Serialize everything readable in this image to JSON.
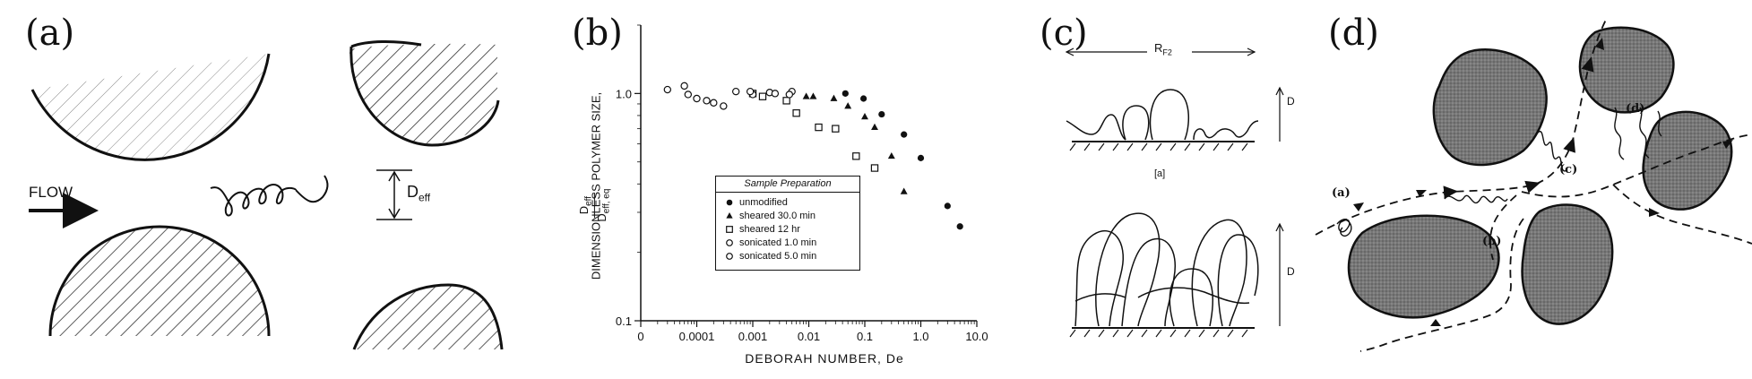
{
  "panels": {
    "a": {
      "label": "(a)",
      "flow_label": "FLOW",
      "deff_main": "D",
      "deff_sub": "eff"
    },
    "b": {
      "label": "(b)",
      "ylabel_line1": "DIMENSIONLESS POLYMER SIZE,",
      "ylabel_num_main": "D",
      "ylabel_num_sub": "eff",
      "ylabel_den_main": "D",
      "ylabel_den_sub": "eff, eq",
      "xlabel": "DEBORAH NUMBER, De",
      "legend_title": "Sample Preparation",
      "legend_items": [
        "unmodified",
        "sheared 30.0 min",
        "sheared 12 hr",
        "sonicated 1.0 min",
        "sonicated 5.0 min"
      ]
    },
    "c": {
      "label": "(c)",
      "rf2_main": "R",
      "rf2_sub": "F2",
      "d_top": "D",
      "sub_label": "[a]",
      "d_bottom": "D"
    },
    "d": {
      "label": "(d)",
      "site_a": "(a)",
      "site_b": "(b)",
      "site_c": "(c)",
      "site_d": "(d)"
    }
  },
  "chart_data": {
    "type": "scatter",
    "xscale": "log",
    "yscale": "log",
    "x_ticks": [
      "0",
      "0.0001",
      "0.001",
      "0.01",
      "0.1",
      "1.0",
      "10.0"
    ],
    "y_ticks": [
      "0.1",
      "1.0"
    ],
    "xlim": [
      1e-05,
      10
    ],
    "ylim": [
      0.1,
      2
    ],
    "legend_position": "center-left",
    "series": [
      {
        "name": "unmodified",
        "marker": "filled-circle",
        "points": [
          [
            0.045,
            1.0
          ],
          [
            0.095,
            0.95
          ],
          [
            0.2,
            0.81
          ],
          [
            0.5,
            0.66
          ],
          [
            1.0,
            0.52
          ],
          [
            3.0,
            0.32
          ],
          [
            5.0,
            0.26
          ]
        ]
      },
      {
        "name": "sheared 30.0 min",
        "marker": "filled-triangle",
        "points": [
          [
            0.009,
            0.97
          ],
          [
            0.012,
            0.97
          ],
          [
            0.028,
            0.95
          ],
          [
            0.05,
            0.88
          ],
          [
            0.1,
            0.79
          ],
          [
            0.15,
            0.71
          ],
          [
            0.3,
            0.53
          ],
          [
            0.5,
            0.37
          ]
        ]
      },
      {
        "name": "sheared 12 hr",
        "marker": "open-square",
        "points": [
          [
            0.001,
            1.0
          ],
          [
            0.0015,
            0.97
          ],
          [
            0.004,
            0.93
          ],
          [
            0.006,
            0.82
          ],
          [
            0.015,
            0.71
          ],
          [
            0.03,
            0.7
          ],
          [
            0.07,
            0.53
          ],
          [
            0.15,
            0.47
          ]
        ]
      },
      {
        "name": "sonicated 1.0 min",
        "marker": "open-circle",
        "points": [
          [
            3e-05,
            1.04
          ],
          [
            7e-05,
            0.99
          ],
          [
            0.0001,
            0.95
          ],
          [
            0.0002,
            0.91
          ],
          [
            0.0005,
            1.02
          ],
          [
            0.001,
            0.99
          ],
          [
            0.002,
            1.01
          ],
          [
            0.005,
            1.02
          ]
        ]
      },
      {
        "name": "sonicated 5.0 min",
        "marker": "open-circle",
        "points": [
          [
            6e-05,
            1.08
          ],
          [
            0.00015,
            0.93
          ],
          [
            0.0003,
            0.88
          ],
          [
            0.0009,
            1.02
          ],
          [
            0.0025,
            1.0
          ],
          [
            0.0045,
            0.99
          ]
        ]
      }
    ]
  }
}
